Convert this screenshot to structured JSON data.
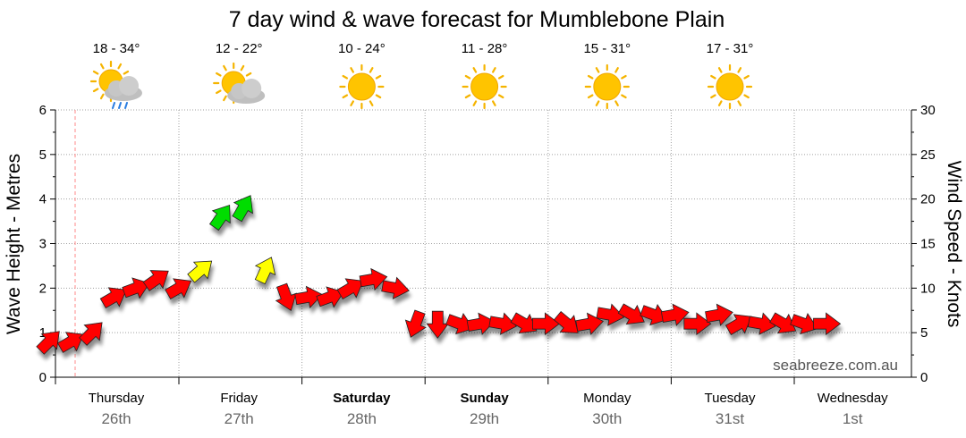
{
  "chart_data": {
    "type": "line",
    "title": "7 day wind & wave forecast for Mumblebone Plain",
    "ylabel_left": "Wave Height - Metres",
    "ylabel_right": "Wind Speed - Knots",
    "ylim_left": [
      0,
      6
    ],
    "ylim_right": [
      0,
      30
    ],
    "yticks_left": [
      "0",
      "1",
      "2",
      "3",
      "4",
      "5",
      "6"
    ],
    "yticks_right": [
      "0",
      "5",
      "10",
      "15",
      "20",
      "25",
      "30"
    ],
    "grid": true,
    "watermark": "seabreeze.com.au",
    "days": [
      {
        "name": "Thursday",
        "date": "26th",
        "bold": false
      },
      {
        "name": "Friday",
        "date": "27th",
        "bold": false
      },
      {
        "name": "Saturday",
        "date": "28th",
        "bold": true
      },
      {
        "name": "Sunday",
        "date": "29th",
        "bold": true
      },
      {
        "name": "Monday",
        "date": "30th",
        "bold": false
      },
      {
        "name": "Tuesday",
        "date": "31st",
        "bold": false
      },
      {
        "name": "Wednesday",
        "date": "1st",
        "bold": false
      }
    ],
    "weather": [
      {
        "temp": "18 - 34°",
        "icon": "sun-cloud-rain-icon"
      },
      {
        "temp": "12 - 22°",
        "icon": "sun-cloud-icon"
      },
      {
        "temp": "10 - 24°",
        "icon": "sun-icon"
      },
      {
        "temp": "11 - 28°",
        "icon": "sun-icon"
      },
      {
        "temp": "15 - 31°",
        "icon": "sun-icon"
      },
      {
        "temp": "17 - 31°",
        "icon": "sun-icon"
      }
    ],
    "wind_series": {
      "name": "Wind Speed",
      "unit": "knots",
      "x_days": [
        0.0,
        0.17,
        0.33,
        0.5,
        0.67,
        0.83,
        1.0,
        1.17,
        1.33,
        1.5,
        1.67,
        1.83,
        2.0,
        2.17,
        2.33,
        2.5,
        2.67,
        2.83,
        3.0,
        3.17,
        3.33,
        3.5,
        3.67,
        3.83,
        4.0,
        4.17,
        4.33,
        4.5,
        4.67,
        4.83,
        5.0,
        5.17,
        5.33,
        5.5,
        5.67,
        5.83,
        6.0
      ],
      "values": [
        4,
        4,
        5,
        9,
        10,
        11,
        10,
        12,
        18,
        19,
        12,
        9,
        9,
        9,
        10,
        11,
        10,
        6,
        6,
        6,
        6,
        6,
        6,
        6,
        6,
        6,
        7,
        7,
        7,
        7,
        6,
        7,
        6,
        6,
        6,
        6,
        6
      ],
      "direction_deg": [
        45,
        60,
        45,
        60,
        70,
        55,
        60,
        50,
        35,
        30,
        25,
        160,
        80,
        70,
        60,
        80,
        100,
        200,
        180,
        110,
        80,
        100,
        120,
        90,
        130,
        80,
        100,
        120,
        110,
        80,
        90,
        80,
        60,
        100,
        120,
        110,
        90
      ],
      "colors": {
        "light": "#ff0000",
        "moderate": "#ffff00",
        "strong": "#00dd00"
      }
    },
    "colors": {
      "grid": "#a0a0a0",
      "axis": "#000000",
      "now_line": "#ff8a8a"
    }
  }
}
